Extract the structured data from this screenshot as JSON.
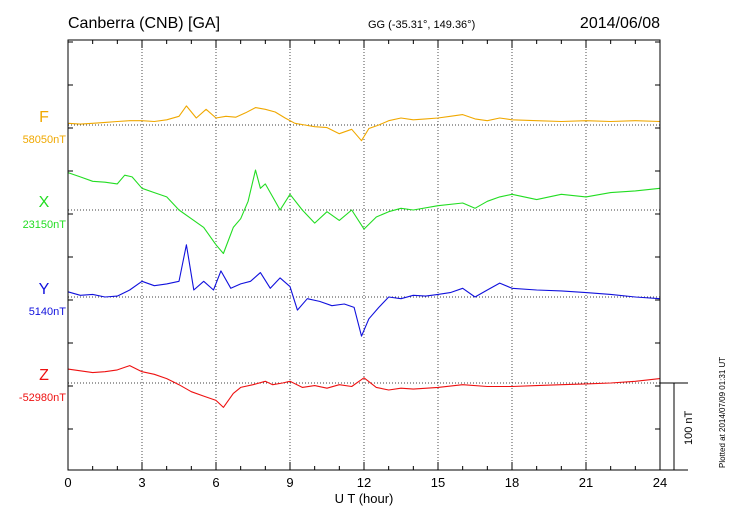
{
  "header": {
    "station": "Canberra (CNB)  [GA]",
    "coords": "GG (-35.31°, 149.36°)",
    "date": "2014/06/08"
  },
  "plotted_note": "Plotted at 2014/07/09 01:31  UT",
  "chart_data": {
    "type": "line",
    "xlabel": "U T (hour)",
    "xlim": [
      0,
      24
    ],
    "xticks": [
      "0",
      "3",
      "6",
      "9",
      "12",
      "15",
      "18",
      "21",
      "24"
    ],
    "grid": true,
    "scale_bar": "100 nT",
    "series": [
      {
        "name": "F",
        "baseline_label": "58050nT",
        "color": "#f0a800",
        "x": [
          0,
          0.5,
          1,
          1.5,
          2,
          2.5,
          3,
          3.5,
          4,
          4.5,
          4.8,
          5.2,
          5.6,
          6,
          6.4,
          6.8,
          7.2,
          7.6,
          8,
          8.4,
          8.8,
          9.2,
          9.6,
          10,
          10.5,
          11,
          11.5,
          11.9,
          12.2,
          12.6,
          13,
          13.5,
          14,
          14.5,
          15,
          15.5,
          16,
          16.5,
          17,
          17.5,
          18,
          19,
          20,
          21,
          22,
          23,
          24
        ],
        "values": [
          58052,
          58051,
          58052,
          58053,
          58054,
          58055,
          58055,
          58054,
          58056,
          58060,
          58072,
          58058,
          58068,
          58058,
          58060,
          58059,
          58064,
          58070,
          58068,
          58065,
          58058,
          58052,
          58050,
          58048,
          58047,
          58040,
          58045,
          58032,
          58046,
          58050,
          58055,
          58058,
          58056,
          58057,
          58058,
          58060,
          58062,
          58057,
          58055,
          58058,
          58056,
          58055,
          58054,
          58055,
          58054,
          58055,
          58054
        ]
      },
      {
        "name": "X",
        "baseline_label": "23150nT",
        "color": "#22dd22",
        "x": [
          0,
          0.5,
          1,
          1.5,
          2,
          2.3,
          2.6,
          3,
          3.5,
          4,
          4.5,
          5,
          5.5,
          6,
          6.3,
          6.7,
          7,
          7.3,
          7.6,
          7.8,
          8,
          8.3,
          8.6,
          9,
          9.5,
          10,
          10.5,
          11,
          11.5,
          12,
          12.5,
          13,
          13.5,
          14,
          15,
          16,
          16.5,
          17,
          17.5,
          18,
          19,
          20,
          21,
          22,
          23,
          24
        ],
        "values": [
          23193,
          23188,
          23183,
          23182,
          23180,
          23190,
          23188,
          23175,
          23170,
          23165,
          23150,
          23140,
          23130,
          23110,
          23100,
          23130,
          23140,
          23160,
          23196,
          23175,
          23180,
          23165,
          23150,
          23168,
          23150,
          23135,
          23148,
          23138,
          23150,
          23128,
          23142,
          23148,
          23152,
          23150,
          23155,
          23158,
          23152,
          23160,
          23165,
          23168,
          23162,
          23168,
          23165,
          23170,
          23172,
          23175
        ]
      },
      {
        "name": "Y",
        "baseline_label": "5140nT",
        "color": "#1111dd",
        "x": [
          0,
          0.5,
          1,
          1.5,
          2,
          2.5,
          3,
          3.5,
          4,
          4.5,
          4.8,
          5.1,
          5.5,
          5.9,
          6.2,
          6.6,
          7,
          7.4,
          7.8,
          8.2,
          8.6,
          9,
          9.3,
          9.7,
          10.2,
          10.7,
          11.2,
          11.6,
          11.9,
          12.2,
          12.6,
          13,
          13.5,
          14,
          14.5,
          15,
          15.5,
          16,
          16.5,
          17,
          17.5,
          18,
          19,
          20,
          21,
          22,
          23,
          24
        ],
        "values": [
          5146,
          5142,
          5143,
          5140,
          5141,
          5148,
          5158,
          5153,
          5155,
          5158,
          5200,
          5148,
          5158,
          5148,
          5170,
          5150,
          5155,
          5158,
          5168,
          5150,
          5162,
          5152,
          5125,
          5138,
          5135,
          5130,
          5132,
          5128,
          5095,
          5115,
          5128,
          5140,
          5138,
          5142,
          5141,
          5143,
          5145,
          5150,
          5140,
          5148,
          5156,
          5150,
          5148,
          5147,
          5145,
          5143,
          5140,
          5138
        ]
      },
      {
        "name": "Z",
        "baseline_label": "-52980nT",
        "color": "#ee1111",
        "x": [
          0,
          0.5,
          1,
          1.5,
          2,
          2.5,
          3,
          3.5,
          4,
          4.5,
          5,
          5.5,
          6,
          6.3,
          6.7,
          7,
          7.5,
          8,
          8.3,
          8.7,
          9,
          9.5,
          10,
          10.5,
          11,
          11.5,
          12,
          12.5,
          13,
          13.5,
          14,
          15,
          16,
          17,
          18,
          19,
          20,
          21,
          22,
          23,
          24
        ],
        "values": [
          -52964,
          -52966,
          -52968,
          -52967,
          -52965,
          -52960,
          -52967,
          -52970,
          -52975,
          -52982,
          -52990,
          -52995,
          -53000,
          -53008,
          -52992,
          -52985,
          -52982,
          -52978,
          -52982,
          -52980,
          -52978,
          -52985,
          -52983,
          -52986,
          -52982,
          -52984,
          -52974,
          -52985,
          -52988,
          -52986,
          -52987,
          -52985,
          -52982,
          -52984,
          -52984,
          -52983,
          -52982,
          -52981,
          -52980,
          -52978,
          -52975
        ]
      }
    ]
  }
}
